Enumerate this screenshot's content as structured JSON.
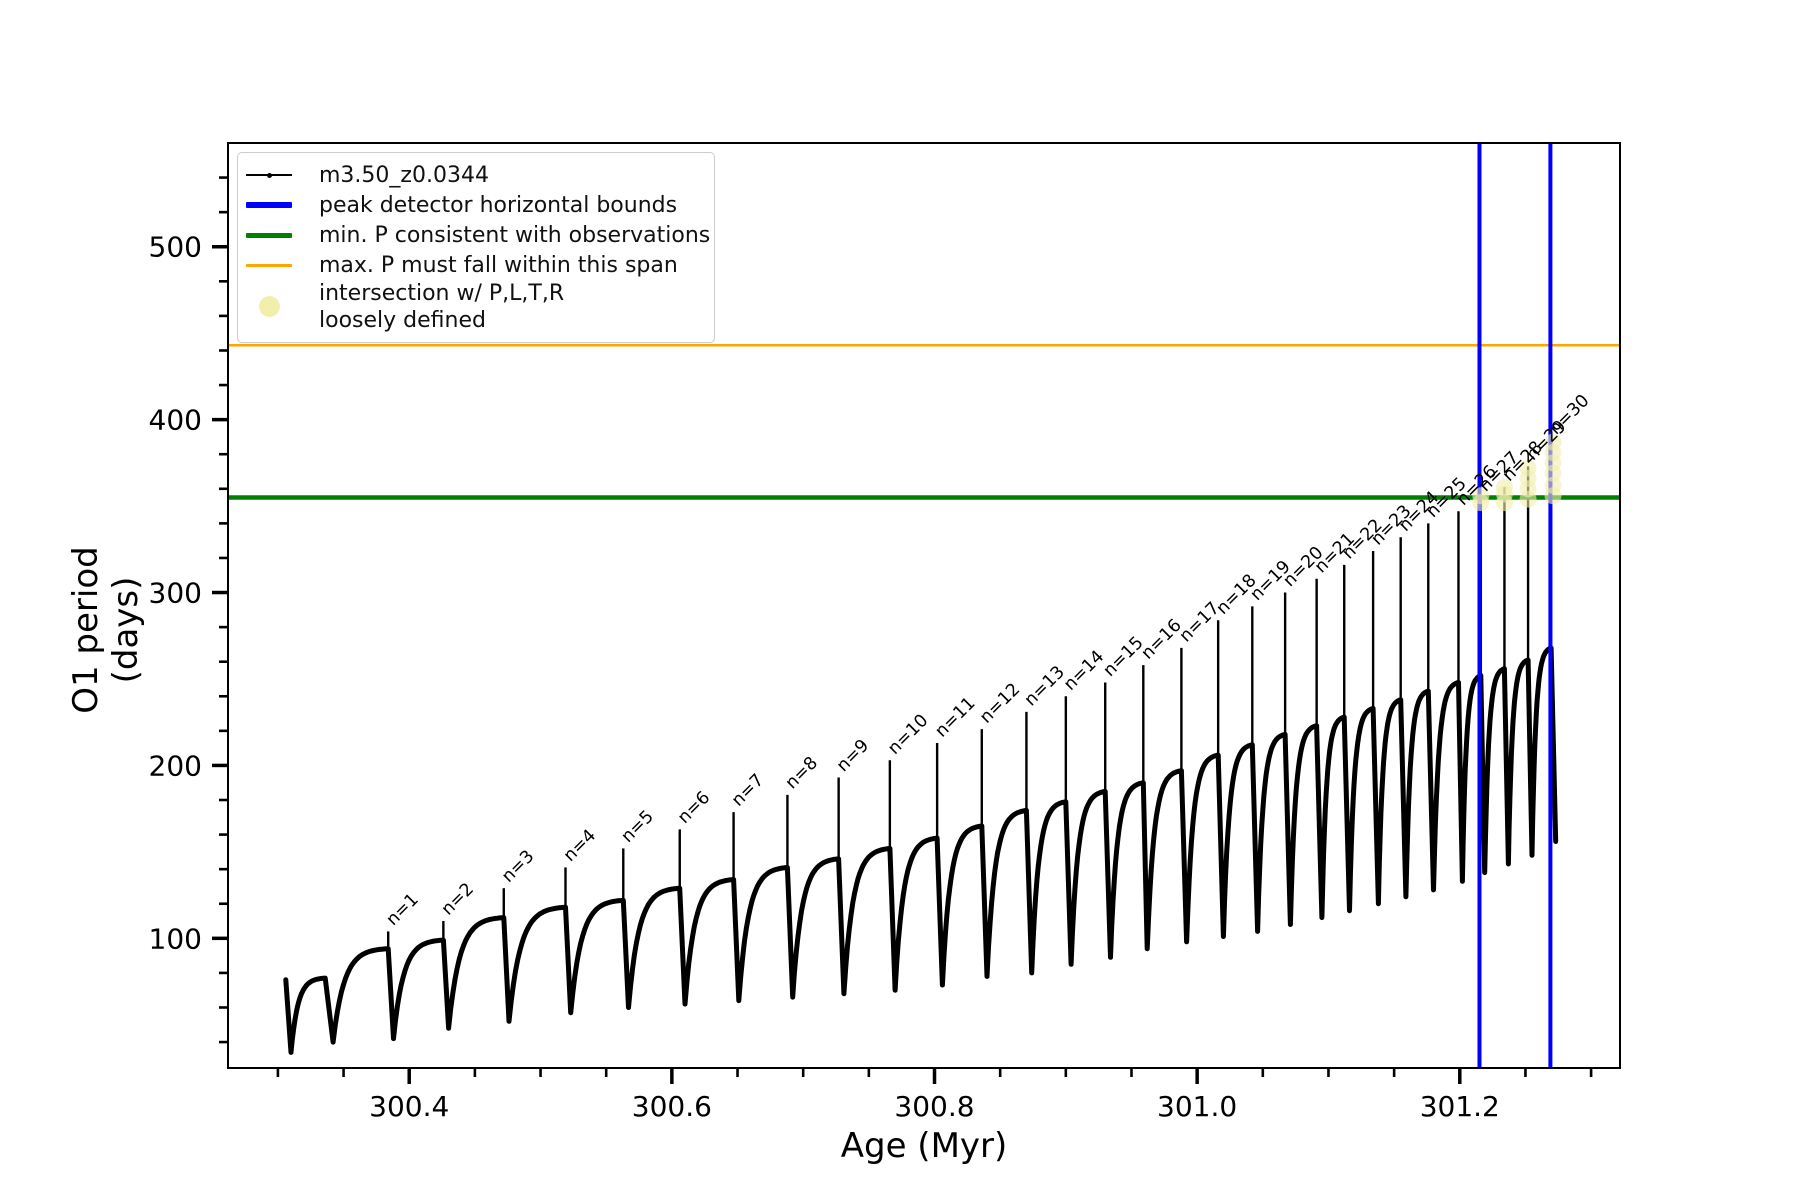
{
  "figure": {
    "bg": "#ffffff"
  },
  "axes": {
    "xlabel": "Age (Myr)",
    "ylabel": "O1 period (days)",
    "xtick_labels": [
      "300.4",
      "300.6",
      "300.8",
      "301.0",
      "301.2"
    ],
    "ytick_labels": [
      "100",
      "200",
      "300",
      "400",
      "500"
    ]
  },
  "legend": {
    "entries": [
      {
        "label": "m3.50_z0.0344",
        "swatch": "line-marker",
        "color": "#000000"
      },
      {
        "label": "peak detector horizontal bounds",
        "swatch": "thick-line",
        "color": "#0000ff"
      },
      {
        "label": "min. P consistent with observations",
        "swatch": "mid-line",
        "color": "#008000"
      },
      {
        "label": "max. P must fall within this span",
        "swatch": "thin-line",
        "color": "#ffa500"
      },
      {
        "label_line1": "intersection w/ P,L,T,R",
        "label_line2": "loosely defined",
        "swatch": "circle",
        "color": "#f2efad"
      }
    ]
  },
  "chart_data": {
    "type": "line",
    "title": "",
    "xlabel": "Age (Myr)",
    "ylabel": "O1 period (days)",
    "xlim": [
      300.262,
      301.322
    ],
    "ylim": [
      25,
      560
    ],
    "xticks": [
      300.4,
      300.6,
      300.8,
      301.0,
      301.2
    ],
    "yticks": [
      100,
      200,
      300,
      400,
      500
    ],
    "xminor_step": 0.05,
    "yminor_step": 20,
    "grid": false,
    "legend_position": "upper left",
    "series_label": "m3.50_z0.0344",
    "series_color": "#000000",
    "start_point": {
      "age": 300.306,
      "period": 76
    },
    "cycles": [
      {
        "n": 0,
        "age_min": 300.31,
        "p_min": 34,
        "age_peak": 300.336,
        "p_env": 77,
        "p_peak": null
      },
      {
        "n": 1,
        "age_min": 300.342,
        "p_min": 40,
        "age_peak": 300.384,
        "p_env": 94,
        "p_peak": 104
      },
      {
        "n": 2,
        "age_min": 300.388,
        "p_min": 42,
        "age_peak": 300.426,
        "p_env": 99,
        "p_peak": 110
      },
      {
        "n": 3,
        "age_min": 300.43,
        "p_min": 48,
        "age_peak": 300.472,
        "p_env": 112,
        "p_peak": 129
      },
      {
        "n": 4,
        "age_min": 300.476,
        "p_min": 52,
        "age_peak": 300.519,
        "p_env": 118,
        "p_peak": 141
      },
      {
        "n": 5,
        "age_min": 300.523,
        "p_min": 57,
        "age_peak": 300.563,
        "p_env": 122,
        "p_peak": 152
      },
      {
        "n": 6,
        "age_min": 300.567,
        "p_min": 60,
        "age_peak": 300.606,
        "p_env": 129,
        "p_peak": 163
      },
      {
        "n": 7,
        "age_min": 300.61,
        "p_min": 62,
        "age_peak": 300.647,
        "p_env": 134,
        "p_peak": 173
      },
      {
        "n": 8,
        "age_min": 300.651,
        "p_min": 64,
        "age_peak": 300.688,
        "p_env": 141,
        "p_peak": 183
      },
      {
        "n": 9,
        "age_min": 300.692,
        "p_min": 66,
        "age_peak": 300.727,
        "p_env": 146,
        "p_peak": 193
      },
      {
        "n": 10,
        "age_min": 300.731,
        "p_min": 68,
        "age_peak": 300.766,
        "p_env": 152,
        "p_peak": 203
      },
      {
        "n": 11,
        "age_min": 300.77,
        "p_min": 70,
        "age_peak": 300.802,
        "p_env": 158,
        "p_peak": 213
      },
      {
        "n": 12,
        "age_min": 300.806,
        "p_min": 73,
        "age_peak": 300.836,
        "p_env": 165,
        "p_peak": 221
      },
      {
        "n": 13,
        "age_min": 300.84,
        "p_min": 78,
        "age_peak": 300.87,
        "p_env": 174,
        "p_peak": 231
      },
      {
        "n": 14,
        "age_min": 300.874,
        "p_min": 80,
        "age_peak": 300.9,
        "p_env": 179,
        "p_peak": 240
      },
      {
        "n": 15,
        "age_min": 300.904,
        "p_min": 85,
        "age_peak": 300.93,
        "p_env": 185,
        "p_peak": 248
      },
      {
        "n": 16,
        "age_min": 300.934,
        "p_min": 89,
        "age_peak": 300.959,
        "p_env": 190,
        "p_peak": 258
      },
      {
        "n": 17,
        "age_min": 300.962,
        "p_min": 94,
        "age_peak": 300.988,
        "p_env": 197,
        "p_peak": 268
      },
      {
        "n": 18,
        "age_min": 300.992,
        "p_min": 98,
        "age_peak": 301.016,
        "p_env": 206,
        "p_peak": 284
      },
      {
        "n": 19,
        "age_min": 301.02,
        "p_min": 101,
        "age_peak": 301.042,
        "p_env": 212,
        "p_peak": 292
      },
      {
        "n": 20,
        "age_min": 301.046,
        "p_min": 104,
        "age_peak": 301.067,
        "p_env": 218,
        "p_peak": 300
      },
      {
        "n": 21,
        "age_min": 301.071,
        "p_min": 108,
        "age_peak": 301.091,
        "p_env": 223,
        "p_peak": 308
      },
      {
        "n": 22,
        "age_min": 301.095,
        "p_min": 112,
        "age_peak": 301.112,
        "p_env": 228,
        "p_peak": 316
      },
      {
        "n": 23,
        "age_min": 301.116,
        "p_min": 116,
        "age_peak": 301.134,
        "p_env": 233,
        "p_peak": 324
      },
      {
        "n": 24,
        "age_min": 301.138,
        "p_min": 120,
        "age_peak": 301.155,
        "p_env": 238,
        "p_peak": 332
      },
      {
        "n": 25,
        "age_min": 301.159,
        "p_min": 124,
        "age_peak": 301.176,
        "p_env": 243,
        "p_peak": 340
      },
      {
        "n": 26,
        "age_min": 301.18,
        "p_min": 128,
        "age_peak": 301.199,
        "p_env": 248,
        "p_peak": 347
      },
      {
        "n": 27,
        "age_min": 301.202,
        "p_min": 133,
        "age_peak": 301.216,
        "p_env": 252,
        "p_peak": 355
      },
      {
        "n": 28,
        "age_min": 301.219,
        "p_min": 138,
        "age_peak": 301.234,
        "p_env": 256,
        "p_peak": 361
      },
      {
        "n": 29,
        "age_min": 301.237,
        "p_min": 143,
        "age_peak": 301.252,
        "p_env": 261,
        "p_peak": 373
      },
      {
        "n": 30,
        "age_min": 301.255,
        "p_min": 148,
        "age_peak": 301.2695,
        "p_env": 268,
        "p_peak": 388
      }
    ],
    "end_drop": {
      "age": 301.273,
      "period": 156
    },
    "peak_label_prefix": "n=",
    "hlines": [
      {
        "label": "min. P consistent with observations",
        "value": 355,
        "color": "#008000",
        "lw": 4.5
      },
      {
        "label": "max. P must fall within this span",
        "value": 443,
        "color": "#ffa500",
        "lw": 2.5
      }
    ],
    "vlines": {
      "label": "peak detector horizontal bounds",
      "ages": [
        301.215,
        301.269
      ],
      "color": "#0000ff",
      "lw": 4
    },
    "intersections": {
      "label": "intersection w/ P,L,T,R loosely defined",
      "color": "#f2efad",
      "opacity": 0.6,
      "radius": 8.5,
      "points": [
        {
          "age": 301.216,
          "periods": [
            352,
            356
          ]
        },
        {
          "age": 301.234,
          "periods": [
            352,
            357,
            361
          ]
        },
        {
          "age": 301.252,
          "periods": [
            354,
            360,
            366,
            372
          ]
        },
        {
          "age": 301.271,
          "periods": [
            356,
            362,
            369,
            375,
            381,
            387
          ]
        }
      ]
    }
  }
}
